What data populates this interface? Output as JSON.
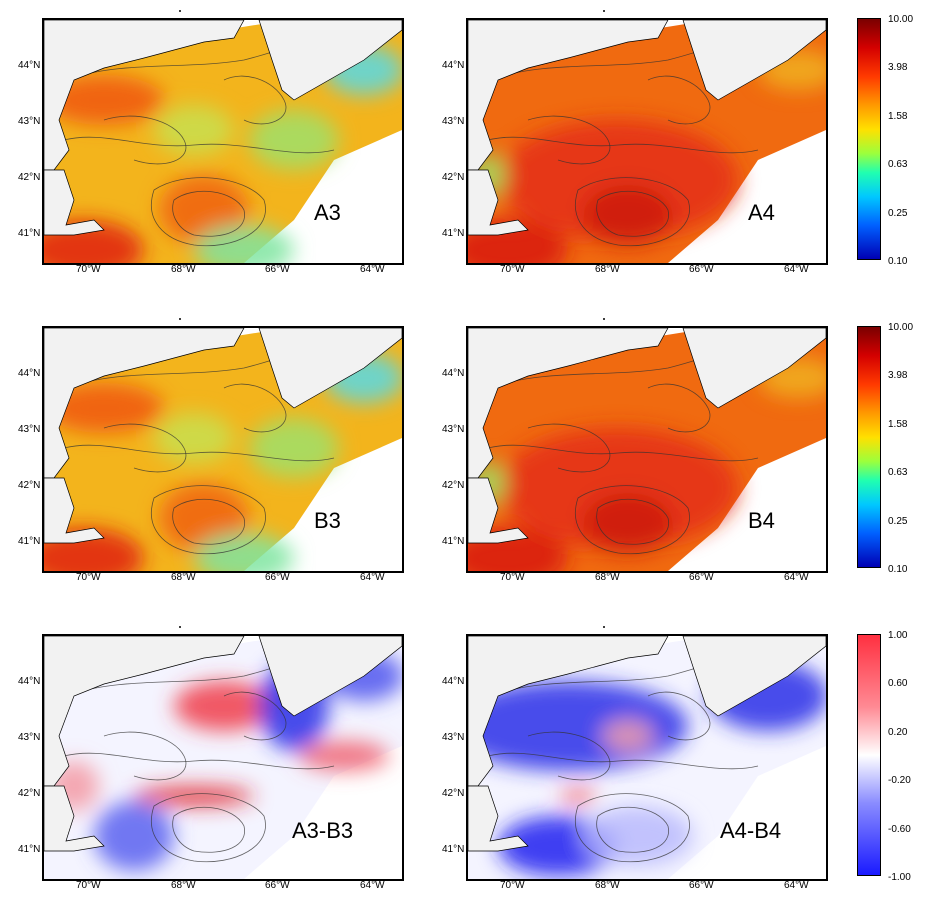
{
  "panels": [
    {
      "label": "A3",
      "scheme": "conc"
    },
    {
      "label": "A4",
      "scheme": "conc"
    },
    {
      "label": "B3",
      "scheme": "conc"
    },
    {
      "label": "B4",
      "scheme": "conc"
    },
    {
      "label": "A3-B3",
      "scheme": "diff"
    },
    {
      "label": "A4-B4",
      "scheme": "diff"
    }
  ],
  "x_ticks": [
    "70°W",
    "68°W",
    "66°W",
    "64°W"
  ],
  "y_ticks": [
    "44°N",
    "43°N",
    "42°N",
    "41°N"
  ],
  "colorbars": {
    "concentration": [
      "10.00",
      "3.98",
      "1.58",
      "0.63",
      "0.25",
      "0.10"
    ],
    "difference": [
      "1.00",
      "0.60",
      "0.20",
      "-0.20",
      "-0.60",
      "-1.00"
    ]
  },
  "colors": {
    "land": "#f2f2f2",
    "high": "#e01e12",
    "mid": "#f5c21c",
    "low": "#57d9e6",
    "diff_pos": "#f03c4b",
    "diff_neg": "#2a2fe8"
  }
}
